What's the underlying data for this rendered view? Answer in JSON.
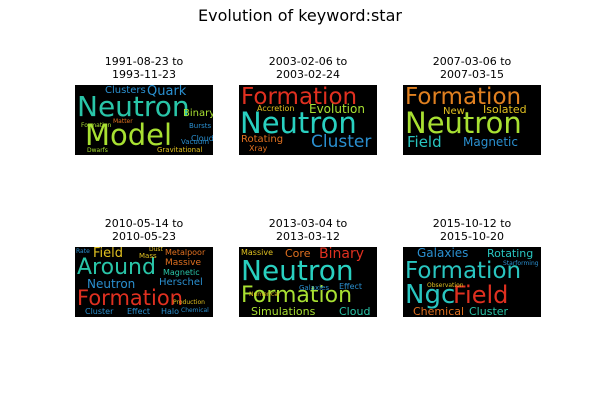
{
  "figure": {
    "title": "Evolution of keyword:star"
  },
  "panels": [
    {
      "date_range_line1": "1991-08-23 to",
      "date_range_line2": "1993-11-23",
      "words": [
        {
          "text": "Neutron",
          "color": "#29c5a8"
        },
        {
          "text": "Model",
          "color": "#a8e032"
        },
        {
          "text": "Quark",
          "color": "#2a8fcf"
        },
        {
          "text": "Clusters",
          "color": "#2a8fcf"
        },
        {
          "text": "Binary",
          "color": "#a8e032"
        },
        {
          "text": "Formation",
          "color": "#a8e032"
        },
        {
          "text": "Matter",
          "color": "#e07020"
        },
        {
          "text": "Gravitational",
          "color": "#e0c020"
        },
        {
          "text": "Cloud",
          "color": "#2a8fcf"
        },
        {
          "text": "Bursts",
          "color": "#2a8fcf"
        },
        {
          "text": "Vacuum",
          "color": "#2a8fcf"
        },
        {
          "text": "Dwarfs",
          "color": "#a8e032"
        }
      ]
    },
    {
      "date_range_line1": "2003-02-06 to",
      "date_range_line2": "2003-02-24",
      "words": [
        {
          "text": "Formation",
          "color": "#e03020"
        },
        {
          "text": "Neutron",
          "color": "#29d0c0"
        },
        {
          "text": "Evolution",
          "color": "#a8e032"
        },
        {
          "text": "Accretion",
          "color": "#e0c020"
        },
        {
          "text": "Cluster",
          "color": "#2a8fcf"
        },
        {
          "text": "Rotating",
          "color": "#e07020"
        },
        {
          "text": "Xray",
          "color": "#e07020"
        }
      ]
    },
    {
      "date_range_line1": "2007-03-06 to",
      "date_range_line2": "2007-03-15",
      "words": [
        {
          "text": "Formation",
          "color": "#e08020"
        },
        {
          "text": "Neutron",
          "color": "#a8e032"
        },
        {
          "text": "New",
          "color": "#e0c020"
        },
        {
          "text": "Isolated",
          "color": "#e0c020"
        },
        {
          "text": "Field",
          "color": "#29c5c0"
        },
        {
          "text": "Magnetic",
          "color": "#2a8fcf"
        }
      ]
    },
    {
      "date_range_line1": "2010-05-14 to",
      "date_range_line2": "2010-05-23",
      "words": [
        {
          "text": "Field",
          "color": "#e0c020"
        },
        {
          "text": "Around",
          "color": "#29c5a8"
        },
        {
          "text": "Neutron",
          "color": "#2a8fcf"
        },
        {
          "text": "Formation",
          "color": "#e03020"
        },
        {
          "text": "Metalpoor",
          "color": "#e07020"
        },
        {
          "text": "Massive",
          "color": "#e07020"
        },
        {
          "text": "Magnetic",
          "color": "#29c5a8"
        },
        {
          "text": "Herschel",
          "color": "#2a8fcf"
        },
        {
          "text": "Mass",
          "color": "#e0c020"
        },
        {
          "text": "Rate",
          "color": "#2a8fcf"
        },
        {
          "text": "Dust",
          "color": "#e0c020"
        },
        {
          "text": "Cluster",
          "color": "#2a8fcf"
        },
        {
          "text": "Effect",
          "color": "#2a8fcf"
        },
        {
          "text": "Halo",
          "color": "#2a8fcf"
        },
        {
          "text": "Production",
          "color": "#e0c020"
        },
        {
          "text": "Chemical",
          "color": "#2a8fcf"
        }
      ]
    },
    {
      "date_range_line1": "2013-03-04 to",
      "date_range_line2": "2013-03-12",
      "words": [
        {
          "text": "Neutron",
          "color": "#29d0c0"
        },
        {
          "text": "Formation",
          "color": "#a8e032"
        },
        {
          "text": "Massive",
          "color": "#e0c020"
        },
        {
          "text": "Core",
          "color": "#e07020"
        },
        {
          "text": "Binary",
          "color": "#e03020"
        },
        {
          "text": "Simulations",
          "color": "#a8e032"
        },
        {
          "text": "Cloud",
          "color": "#29c5a8"
        },
        {
          "text": "Effect",
          "color": "#2a8fcf"
        },
        {
          "text": "Galaxies",
          "color": "#2a8fcf"
        },
        {
          "text": "Numerical",
          "color": "#e0c020"
        }
      ]
    },
    {
      "date_range_line1": "2015-10-12 to",
      "date_range_line2": "2015-10-20",
      "words": [
        {
          "text": "Galaxies",
          "color": "#2a8fcf"
        },
        {
          "text": "Rotating",
          "color": "#29c5c0"
        },
        {
          "text": "Formation",
          "color": "#29c5c0"
        },
        {
          "text": "Ngc",
          "color": "#29c5c0"
        },
        {
          "text": "Field",
          "color": "#e03020"
        },
        {
          "text": "Chemical",
          "color": "#e07020"
        },
        {
          "text": "Cluster",
          "color": "#29c5a8"
        },
        {
          "text": "Observation",
          "color": "#e0c020"
        },
        {
          "text": "Starforming",
          "color": "#2a8fcf"
        }
      ]
    }
  ]
}
